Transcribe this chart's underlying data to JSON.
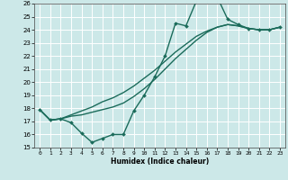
{
  "xlabel": "Humidex (Indice chaleur)",
  "xlim": [
    -0.5,
    23.5
  ],
  "ylim": [
    15,
    26
  ],
  "yticks": [
    15,
    16,
    17,
    18,
    19,
    20,
    21,
    22,
    23,
    24,
    25,
    26
  ],
  "xticks": [
    0,
    1,
    2,
    3,
    4,
    5,
    6,
    7,
    8,
    9,
    10,
    11,
    12,
    13,
    14,
    15,
    16,
    17,
    18,
    19,
    20,
    21,
    22,
    23
  ],
  "bg_color": "#cce8e8",
  "grid_color": "#ffffff",
  "line_color": "#1a6b5a",
  "lines": [
    {
      "x": [
        0,
        1,
        2,
        3,
        4,
        5,
        6,
        7,
        8,
        9,
        10,
        11,
        12,
        13,
        14,
        15,
        16,
        17,
        18,
        19,
        20,
        21,
        22,
        23
      ],
      "y": [
        17.9,
        17.1,
        17.2,
        16.9,
        16.1,
        15.4,
        15.7,
        16.0,
        16.0,
        17.8,
        19.0,
        20.4,
        22.0,
        24.5,
        24.3,
        26.2,
        26.8,
        26.5,
        24.8,
        24.4,
        24.1,
        24.0,
        24.0,
        24.2
      ],
      "marker": "D",
      "markersize": 2.0,
      "linewidth": 1.0
    },
    {
      "x": [
        0,
        1,
        2,
        3,
        4,
        5,
        6,
        7,
        8,
        9,
        10,
        11,
        12,
        13,
        14,
        15,
        16,
        17,
        18,
        19,
        20,
        21,
        22,
        23
      ],
      "y": [
        17.9,
        17.1,
        17.2,
        17.4,
        17.5,
        17.7,
        17.9,
        18.1,
        18.4,
        18.9,
        19.5,
        20.2,
        21.0,
        21.8,
        22.5,
        23.2,
        23.8,
        24.2,
        24.4,
        24.3,
        24.1,
        24.0,
        24.0,
        24.2
      ],
      "marker": null,
      "linewidth": 1.0
    },
    {
      "x": [
        0,
        1,
        2,
        3,
        4,
        5,
        6,
        7,
        8,
        9,
        10,
        11,
        12,
        13,
        14,
        15,
        16,
        17,
        18,
        19,
        20,
        21,
        22,
        23
      ],
      "y": [
        17.9,
        17.1,
        17.2,
        17.5,
        17.8,
        18.1,
        18.5,
        18.8,
        19.2,
        19.7,
        20.3,
        20.9,
        21.6,
        22.3,
        22.9,
        23.5,
        23.9,
        24.2,
        24.4,
        24.3,
        24.1,
        24.0,
        24.0,
        24.2
      ],
      "marker": null,
      "linewidth": 1.0
    }
  ]
}
